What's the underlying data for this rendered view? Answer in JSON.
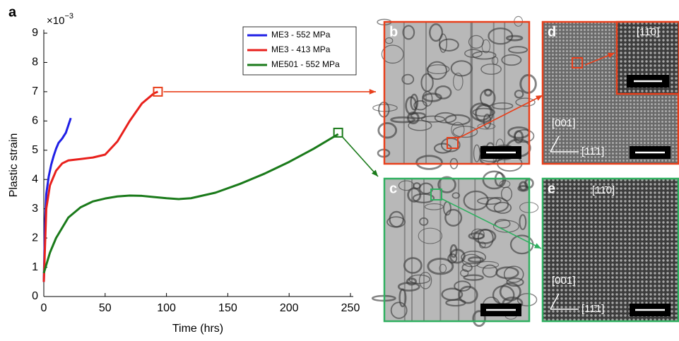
{
  "figure_label": "a",
  "chart_data": {
    "type": "line",
    "x_label": "Time (hrs)",
    "y_label": "Plastic strain",
    "y_scale_base": "×10",
    "y_scale_exponent": "−3",
    "xlim": [
      0,
      250
    ],
    "ylim": [
      0,
      9
    ],
    "xticks": [
      0,
      50,
      100,
      150,
      200,
      250
    ],
    "yticks": [
      0,
      1,
      2,
      3,
      4,
      5,
      6,
      7,
      8,
      9
    ],
    "series": [
      {
        "name": "ME3 - 552 MPa",
        "color": "#1f1fe6",
        "x": [
          0,
          1,
          2,
          4,
          6,
          8,
          10,
          12,
          15,
          18,
          20,
          22
        ],
        "values": [
          0.5,
          2.5,
          3.5,
          4.1,
          4.5,
          4.8,
          5.05,
          5.25,
          5.4,
          5.6,
          5.85,
          6.1
        ]
      },
      {
        "name": "ME3 - 413 MPa",
        "color": "#e8201c",
        "x": [
          0,
          2,
          5,
          10,
          15,
          20,
          30,
          40,
          50,
          60,
          70,
          80,
          90,
          93
        ],
        "values": [
          0.5,
          3,
          3.8,
          4.3,
          4.55,
          4.65,
          4.7,
          4.75,
          4.85,
          5.3,
          6.0,
          6.6,
          6.95,
          7.0
        ]
      },
      {
        "name": "ME501 - 552 MPa",
        "color": "#1a7a1a",
        "x": [
          0,
          5,
          10,
          20,
          30,
          40,
          50,
          60,
          70,
          80,
          90,
          100,
          110,
          120,
          140,
          160,
          180,
          200,
          220,
          240
        ],
        "values": [
          0.8,
          1.5,
          2.0,
          2.7,
          3.05,
          3.25,
          3.35,
          3.42,
          3.45,
          3.44,
          3.4,
          3.36,
          3.33,
          3.36,
          3.55,
          3.85,
          4.2,
          4.6,
          5.05,
          5.55
        ]
      }
    ],
    "markers": [
      {
        "x": 93,
        "y": 7.0,
        "color": "#e8401c"
      },
      {
        "x": 240,
        "y": 5.6,
        "color": "#1a7a1a"
      }
    ]
  },
  "panels": [
    {
      "label": "b",
      "color": "#e8401c"
    },
    {
      "label": "d",
      "color": "#e8401c",
      "inset_label": "[11̄0]",
      "axis_up": "[001]",
      "axis_right": "[11̄1]"
    },
    {
      "label": "c",
      "color": "#2fb060"
    },
    {
      "label": "e",
      "color": "#2fb060",
      "top_label": "[11̄0]",
      "axis_up": "[001]",
      "axis_right": "[11̄1]"
    }
  ]
}
